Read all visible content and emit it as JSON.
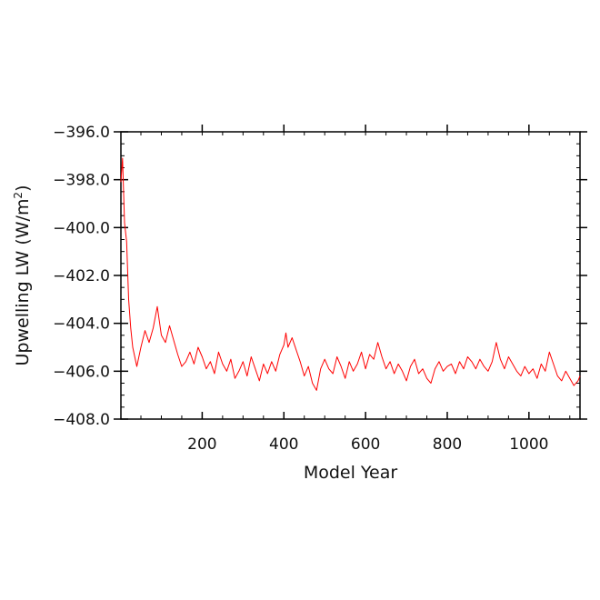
{
  "chart_data": {
    "type": "line",
    "title": "",
    "xlabel": "Model Year",
    "ylabel_main": "Upwelling LW (W/m",
    "ylabel_sup": "2",
    "ylabel_tail": ")",
    "xlim": [
      1,
      1125
    ],
    "ylim": [
      -408.0,
      -396.0
    ],
    "x_ticks": [
      {
        "value": 200,
        "label": "200"
      },
      {
        "value": 400,
        "label": "400"
      },
      {
        "value": 600,
        "label": "600"
      },
      {
        "value": 800,
        "label": "800"
      },
      {
        "value": 1000,
        "label": "1000"
      }
    ],
    "y_ticks": [
      {
        "value": -396.0,
        "label": "−396.0"
      },
      {
        "value": -398.0,
        "label": "−398.0"
      },
      {
        "value": -400.0,
        "label": "−400.0"
      },
      {
        "value": -402.0,
        "label": "−402.0"
      },
      {
        "value": -404.0,
        "label": "−404.0"
      },
      {
        "value": -406.0,
        "label": "−406.0"
      },
      {
        "value": -408.0,
        "label": "−408.0"
      }
    ],
    "grid": false,
    "legend": "none",
    "series": [
      {
        "color": "#ff0000",
        "x": [
          1,
          5,
          10,
          15,
          20,
          25,
          30,
          40,
          50,
          60,
          70,
          80,
          90,
          100,
          110,
          120,
          130,
          140,
          150,
          160,
          170,
          180,
          190,
          200,
          210,
          220,
          230,
          240,
          250,
          260,
          270,
          280,
          290,
          300,
          310,
          320,
          330,
          340,
          350,
          360,
          370,
          380,
          390,
          400,
          405,
          410,
          420,
          430,
          440,
          450,
          460,
          470,
          480,
          490,
          500,
          510,
          520,
          530,
          540,
          550,
          560,
          570,
          580,
          590,
          600,
          610,
          620,
          630,
          640,
          650,
          660,
          670,
          680,
          690,
          700,
          710,
          720,
          730,
          740,
          750,
          760,
          770,
          780,
          790,
          800,
          810,
          820,
          830,
          840,
          850,
          860,
          870,
          880,
          890,
          900,
          910,
          920,
          930,
          940,
          950,
          960,
          970,
          980,
          990,
          1000,
          1010,
          1020,
          1030,
          1040,
          1050,
          1060,
          1070,
          1080,
          1090,
          1100,
          1110,
          1120,
          1125
        ],
        "y": [
          -398.1,
          -397.1,
          -399.8,
          -400.6,
          -403.0,
          -404.2,
          -405.0,
          -405.8,
          -405.0,
          -404.3,
          -404.8,
          -404.2,
          -403.3,
          -404.5,
          -404.8,
          -404.1,
          -404.7,
          -405.3,
          -405.8,
          -405.6,
          -405.2,
          -405.7,
          -405.0,
          -405.4,
          -405.9,
          -405.6,
          -406.1,
          -405.2,
          -405.7,
          -406.0,
          -405.5,
          -406.3,
          -406.0,
          -405.6,
          -406.2,
          -405.4,
          -405.9,
          -406.4,
          -405.7,
          -406.1,
          -405.6,
          -406.0,
          -405.3,
          -404.9,
          -404.4,
          -405.0,
          -404.6,
          -405.1,
          -405.6,
          -406.2,
          -405.8,
          -406.5,
          -406.8,
          -405.9,
          -405.5,
          -405.9,
          -406.1,
          -405.4,
          -405.8,
          -406.3,
          -405.6,
          -406.0,
          -405.7,
          -405.2,
          -405.9,
          -405.3,
          -405.5,
          -404.8,
          -405.4,
          -405.9,
          -405.6,
          -406.1,
          -405.7,
          -406.0,
          -406.4,
          -405.8,
          -405.5,
          -406.1,
          -405.9,
          -406.3,
          -406.5,
          -405.9,
          -405.6,
          -406.0,
          -405.8,
          -405.7,
          -406.1,
          -405.6,
          -405.9,
          -405.4,
          -405.6,
          -405.9,
          -405.5,
          -405.8,
          -406.0,
          -405.6,
          -404.8,
          -405.5,
          -405.9,
          -405.4,
          -405.7,
          -406.0,
          -406.2,
          -405.8,
          -406.1,
          -405.9,
          -406.3,
          -405.7,
          -406.0,
          -405.2,
          -405.7,
          -406.2,
          -406.4,
          -406.0,
          -406.3,
          -406.6,
          -406.4,
          -406.2
        ]
      }
    ]
  }
}
